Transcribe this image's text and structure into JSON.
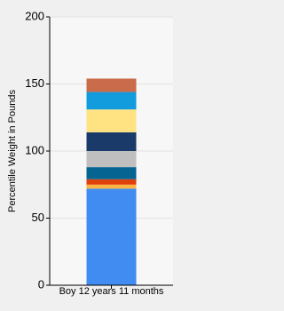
{
  "chart_data": {
    "type": "stacked_bar",
    "y_label": "Percentile Weight in Pounds",
    "categories": [
      "Boy 12 years 11 months"
    ],
    "series": [
      {
        "color": "#418cf0",
        "values": [
          72
        ]
      },
      {
        "color": "#fcb441",
        "values": [
          3
        ]
      },
      {
        "color": "#e0400a",
        "values": [
          4
        ]
      },
      {
        "color": "#056492",
        "values": [
          9
        ]
      },
      {
        "color": "#bfbfbf",
        "values": [
          12
        ]
      },
      {
        "color": "#1a3b69",
        "values": [
          14
        ]
      },
      {
        "color": "#ffe382",
        "values": [
          17
        ]
      },
      {
        "color": "#129cdd",
        "values": [
          13
        ]
      },
      {
        "color": "#ca6b4b",
        "values": [
          10
        ]
      }
    ],
    "ylim": [
      0,
      200
    ],
    "yticks": [
      0,
      50,
      100,
      150,
      200
    ],
    "grid": true
  }
}
